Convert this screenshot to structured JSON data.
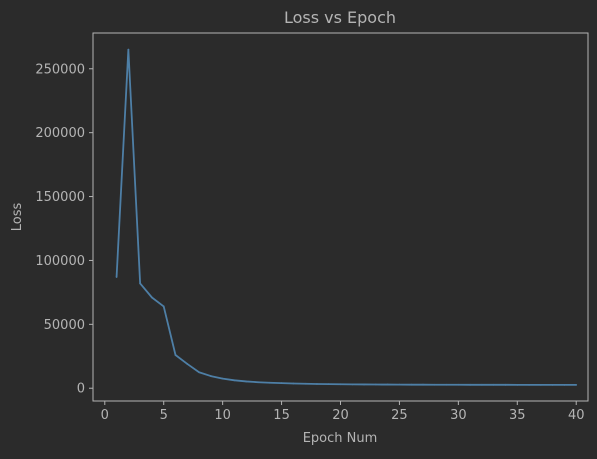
{
  "chart_data": {
    "type": "line",
    "title": "Loss vs Epoch",
    "xlabel": "Epoch Num",
    "ylabel": "Loss",
    "xlim": [
      -1,
      41
    ],
    "ylim": [
      -10000,
      278000
    ],
    "x_ticks": [
      0,
      5,
      10,
      15,
      20,
      25,
      30,
      35,
      40
    ],
    "y_ticks": [
      0,
      50000,
      100000,
      150000,
      200000,
      250000
    ],
    "grid": false,
    "series": [
      {
        "color": "#4e7fa6",
        "x": [
          1,
          2,
          3,
          4,
          5,
          6,
          7,
          8,
          9,
          10,
          11,
          12,
          13,
          14,
          15,
          16,
          17,
          18,
          19,
          20,
          21,
          22,
          23,
          24,
          25,
          26,
          27,
          28,
          29,
          30,
          31,
          32,
          33,
          34,
          35,
          36,
          37,
          38,
          39,
          40
        ],
        "y": [
          87000,
          265000,
          82000,
          71000,
          64000,
          26000,
          19000,
          12500,
          9500,
          7500,
          6200,
          5300,
          4700,
          4300,
          4000,
          3700,
          3500,
          3300,
          3200,
          3100,
          3000,
          2950,
          2900,
          2850,
          2800,
          2780,
          2760,
          2740,
          2720,
          2700,
          2690,
          2680,
          2670,
          2660,
          2650,
          2640,
          2630,
          2620,
          2610,
          2600
        ]
      }
    ]
  },
  "colors": {
    "background": "#2b2b2b",
    "axes": "#b4b4b4",
    "text": "#b4b4b4",
    "line": "#4e7fa6"
  }
}
